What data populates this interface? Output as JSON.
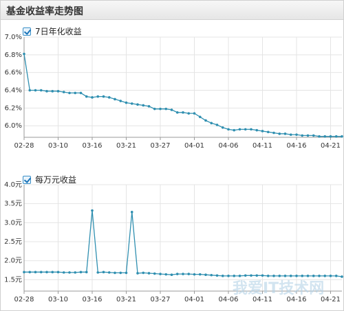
{
  "header": {
    "title": "基金收益率走势图"
  },
  "colors": {
    "line": "#2f8fb0",
    "grid": "#e4e4e4",
    "axis": "#999999"
  },
  "watermark": "我爱IT技术网",
  "chart_data": [
    {
      "type": "line",
      "legend": "7日年化收益",
      "ylim": [
        5.87,
        7.0
      ],
      "yticks": [
        "6.0%",
        "6.2%",
        "6.4%",
        "6.6%",
        "6.8%",
        "7.0%"
      ],
      "ytick_values": [
        6.0,
        6.2,
        6.4,
        6.6,
        6.8,
        7.0
      ],
      "xticks": [
        "02-28",
        "03-10",
        "03-16",
        "03-21",
        "03-27",
        "04-01",
        "04-06",
        "04-11",
        "04-16",
        "04-21"
      ],
      "xtick_index": [
        0,
        6,
        12,
        18,
        24,
        30,
        36,
        42,
        48,
        54
      ],
      "values": [
        6.81,
        6.4,
        6.4,
        6.4,
        6.39,
        6.39,
        6.39,
        6.38,
        6.37,
        6.37,
        6.37,
        6.33,
        6.32,
        6.33,
        6.33,
        6.32,
        6.3,
        6.28,
        6.26,
        6.25,
        6.24,
        6.23,
        6.22,
        6.19,
        6.19,
        6.19,
        6.18,
        6.15,
        6.15,
        6.14,
        6.14,
        6.1,
        6.06,
        6.03,
        6.01,
        5.98,
        5.96,
        5.95,
        5.96,
        5.96,
        5.96,
        5.95,
        5.94,
        5.93,
        5.92,
        5.91,
        5.91,
        5.9,
        5.9,
        5.89,
        5.89,
        5.89,
        5.88,
        5.88,
        5.88,
        5.88,
        5.88
      ]
    },
    {
      "type": "line",
      "legend": "每万元收益",
      "ylim": [
        1.2,
        4.0
      ],
      "yticks": [
        "1.5元",
        "2.0元",
        "2.5元",
        "3.0元",
        "3.5元",
        "4.0元"
      ],
      "ytick_values": [
        1.5,
        2.0,
        2.5,
        3.0,
        3.5,
        4.0
      ],
      "xticks": [
        "02-28",
        "03-10",
        "03-16",
        "03-21",
        "03-27",
        "04-01",
        "04-06",
        "04-11",
        "04-16",
        "04-21"
      ],
      "xtick_index": [
        0,
        6,
        12,
        18,
        24,
        30,
        36,
        42,
        48,
        54
      ],
      "values": [
        1.7,
        1.7,
        1.7,
        1.7,
        1.7,
        1.7,
        1.7,
        1.69,
        1.69,
        1.69,
        1.7,
        1.7,
        3.32,
        1.69,
        1.7,
        1.69,
        1.68,
        1.68,
        1.68,
        3.28,
        1.67,
        1.68,
        1.67,
        1.66,
        1.65,
        1.64,
        1.63,
        1.65,
        1.65,
        1.65,
        1.64,
        1.64,
        1.63,
        1.62,
        1.61,
        1.6,
        1.6,
        1.6,
        1.6,
        1.61,
        1.61,
        1.61,
        1.61,
        1.6,
        1.6,
        1.6,
        1.6,
        1.6,
        1.6,
        1.6,
        1.6,
        1.6,
        1.6,
        1.6,
        1.6,
        1.6,
        1.58
      ]
    }
  ]
}
